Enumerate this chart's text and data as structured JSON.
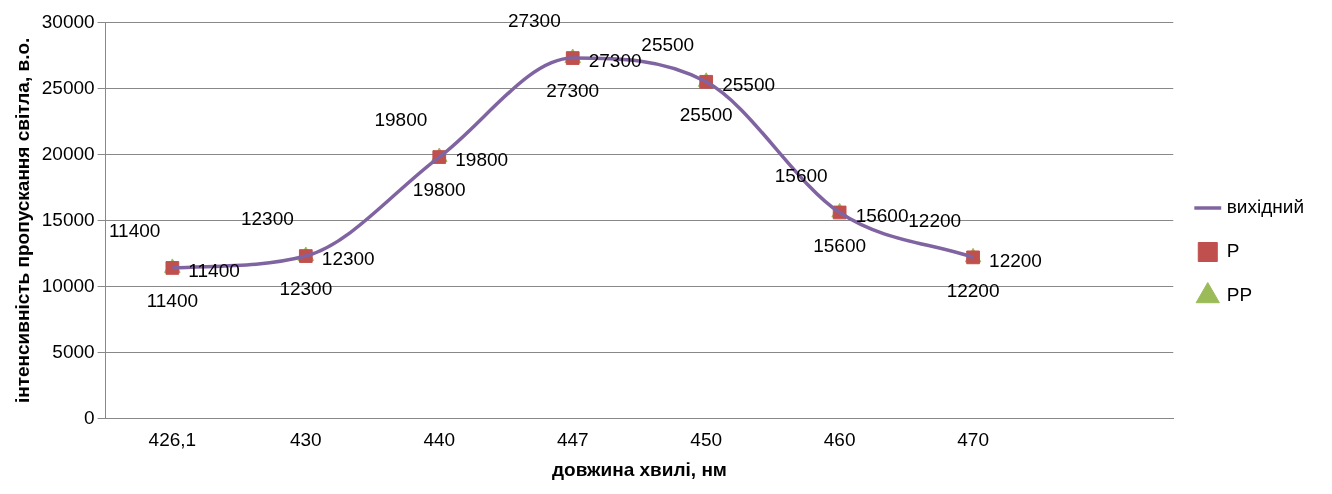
{
  "chart_data": {
    "type": "line",
    "xlabel": "довжина хвилі, нм",
    "ylabel": "інтенсивність пропускання світла, в.о.",
    "categories": [
      "426,1",
      "430",
      "440",
      "447",
      "450",
      "460",
      "470",
      null
    ],
    "series": [
      {
        "name": "вихідний",
        "type": "line",
        "color": "#8064a2",
        "marker": "none",
        "values": [
          11400,
          12300,
          19800,
          27300,
          25500,
          15600,
          12200,
          null
        ]
      },
      {
        "name": "Р",
        "type": "scatter",
        "color": "#c0504d",
        "marker": "square",
        "values": [
          11400,
          12300,
          19800,
          27300,
          25500,
          15600,
          12200,
          null
        ]
      },
      {
        "name": "РР",
        "type": "scatter",
        "color": "#9bbb59",
        "marker": "triangle",
        "values": [
          11400,
          12300,
          19800,
          27300,
          25500,
          15600,
          12200,
          null
        ]
      }
    ],
    "ylim": [
      0,
      30000
    ],
    "yticks": [
      0,
      5000,
      10000,
      15000,
      20000,
      25000,
      30000
    ],
    "grid": "y",
    "legend": "right",
    "data_labels": true
  }
}
